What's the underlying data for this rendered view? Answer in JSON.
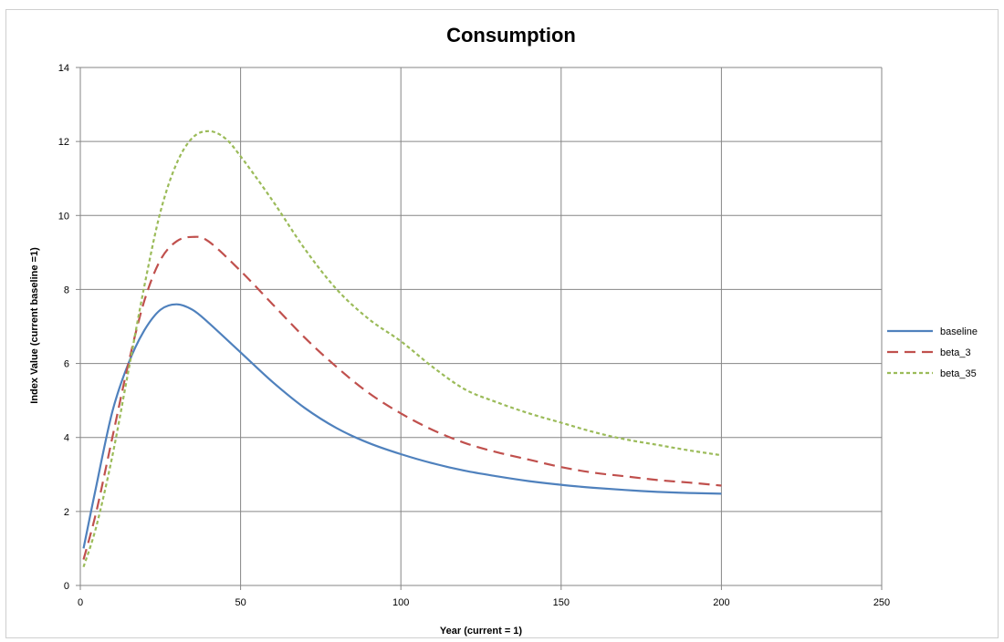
{
  "chart_data": {
    "type": "line",
    "title": "Consumption",
    "xlabel": "Year (current = 1)",
    "ylabel": "Index Value (current baseline =1)",
    "xlim": [
      0,
      250
    ],
    "ylim": [
      0,
      14
    ],
    "xticks": [
      0,
      50,
      100,
      150,
      200,
      250
    ],
    "yticks": [
      0,
      2,
      4,
      6,
      8,
      10,
      12,
      14
    ],
    "grid": true,
    "legend_position": "right",
    "series": [
      {
        "name": "baseline",
        "color": "#4F81BD",
        "dash": "solid",
        "x": [
          1,
          5,
          10,
          15,
          20,
          25,
          30,
          35,
          40,
          50,
          60,
          70,
          80,
          90,
          100,
          110,
          120,
          130,
          140,
          150,
          160,
          170,
          180,
          190,
          200
        ],
        "y": [
          1.0,
          2.7,
          4.7,
          6.0,
          6.9,
          7.45,
          7.6,
          7.45,
          7.1,
          6.3,
          5.5,
          4.8,
          4.25,
          3.85,
          3.55,
          3.3,
          3.1,
          2.95,
          2.82,
          2.72,
          2.64,
          2.58,
          2.53,
          2.5,
          2.48
        ]
      },
      {
        "name": "beta_3",
        "color": "#C0504D",
        "dash": "long",
        "x": [
          1,
          5,
          10,
          15,
          20,
          25,
          30,
          35,
          40,
          50,
          60,
          70,
          80,
          90,
          100,
          110,
          120,
          130,
          140,
          150,
          160,
          170,
          180,
          190,
          200
        ],
        "y": [
          0.7,
          2.0,
          4.0,
          6.0,
          7.7,
          8.8,
          9.3,
          9.42,
          9.3,
          8.5,
          7.6,
          6.7,
          5.9,
          5.2,
          4.65,
          4.2,
          3.85,
          3.6,
          3.4,
          3.2,
          3.05,
          2.95,
          2.85,
          2.78,
          2.7
        ]
      },
      {
        "name": "beta_35",
        "color": "#9BBB59",
        "dash": "short",
        "x": [
          1,
          5,
          10,
          15,
          20,
          25,
          30,
          35,
          40,
          45,
          50,
          60,
          70,
          80,
          90,
          100,
          110,
          120,
          130,
          140,
          150,
          160,
          170,
          180,
          190,
          200
        ],
        "y": [
          0.5,
          1.6,
          3.5,
          5.8,
          8.1,
          10.1,
          11.4,
          12.1,
          12.28,
          12.1,
          11.6,
          10.4,
          9.1,
          8.0,
          7.2,
          6.6,
          5.9,
          5.3,
          4.95,
          4.65,
          4.4,
          4.15,
          3.95,
          3.8,
          3.65,
          3.52
        ]
      }
    ]
  }
}
